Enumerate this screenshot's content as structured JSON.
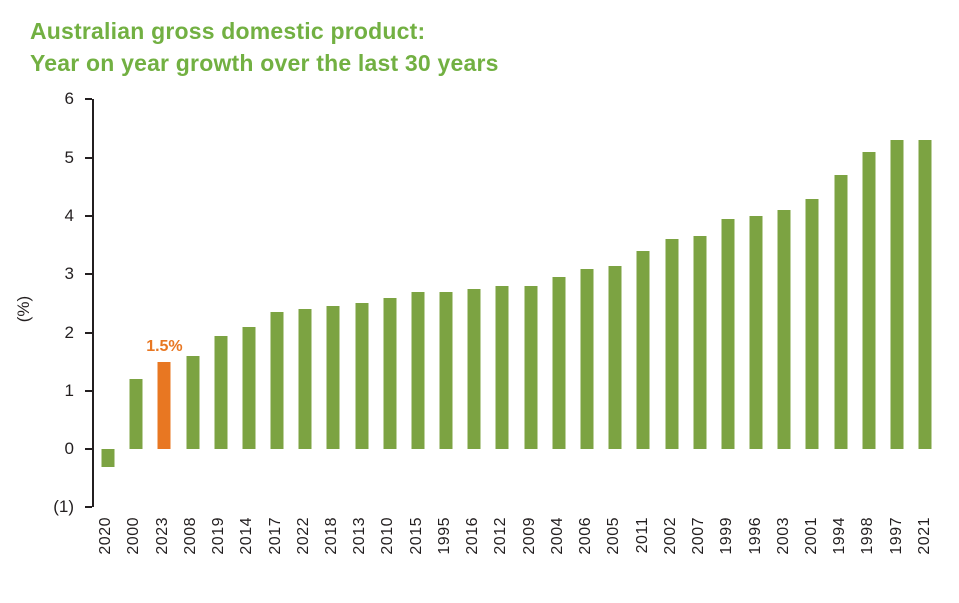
{
  "title": {
    "line1": "Australian gross domestic product:",
    "line2": "Year on year growth over the last 30 years"
  },
  "colors": {
    "title_green": "#72b042",
    "bar_green": "#7ca342",
    "highlight_orange": "#e87722",
    "axis_dark": "#231f20"
  },
  "chart_data": {
    "type": "bar",
    "title": "Australian gross domestic product: Year on year growth over the last 30 years",
    "xlabel": "",
    "ylabel": "(%)",
    "ylim": [
      -1,
      6
    ],
    "grid": false,
    "legend": "none",
    "sort_order": "ascending by value",
    "ytick_values": [
      6,
      5,
      4,
      3,
      2,
      1,
      0,
      -1
    ],
    "ytick_labels": [
      "6",
      "5",
      "4",
      "3",
      "2",
      "1",
      "0",
      "(1)"
    ],
    "categories": [
      "2020",
      "2000",
      "2023",
      "2008",
      "2019",
      "2014",
      "2017",
      "2022",
      "2018",
      "2013",
      "2010",
      "2015",
      "1995",
      "2016",
      "2012",
      "2009",
      "2004",
      "2006",
      "2005",
      "2011",
      "2002",
      "2007",
      "1999",
      "1996",
      "2003",
      "2001",
      "1994",
      "1998",
      "1997",
      "2021"
    ],
    "values": [
      -0.3,
      1.2,
      1.5,
      1.6,
      1.95,
      2.1,
      2.35,
      2.4,
      2.45,
      2.5,
      2.6,
      2.7,
      2.7,
      2.75,
      2.8,
      2.8,
      2.95,
      3.1,
      3.15,
      3.4,
      3.6,
      3.65,
      3.95,
      4.0,
      4.1,
      4.3,
      4.7,
      5.1,
      5.3,
      5.3
    ],
    "highlight": {
      "category": "2023",
      "value": 1.5,
      "label": "1.5%"
    }
  }
}
